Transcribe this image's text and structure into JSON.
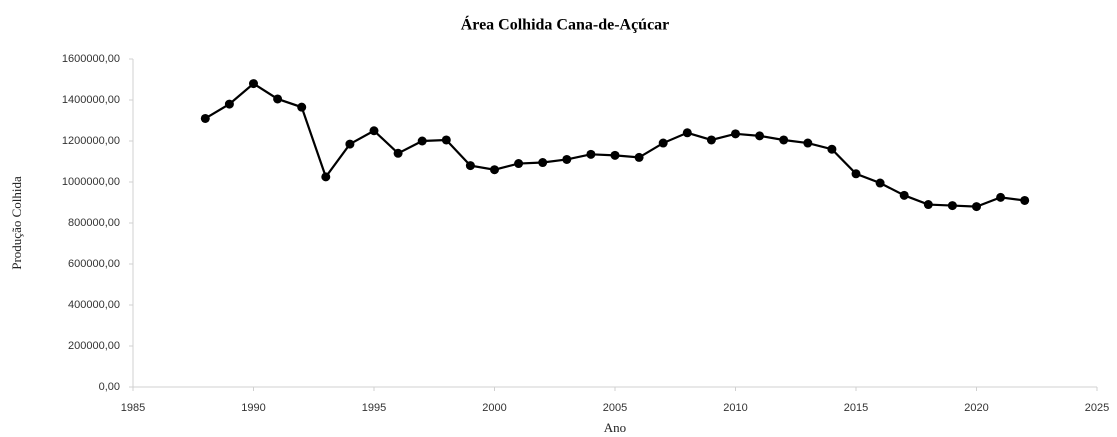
{
  "chart_data": {
    "type": "line",
    "title": "Área Colhida Cana-de-Açúcar",
    "x_label": "Ano",
    "y_label": "Produção Colhida",
    "x": [
      1988,
      1989,
      1990,
      1991,
      1992,
      1993,
      1994,
      1995,
      1996,
      1997,
      1998,
      1999,
      2000,
      2001,
      2002,
      2003,
      2004,
      2005,
      2006,
      2007,
      2008,
      2009,
      2010,
      2011,
      2012,
      2013,
      2014,
      2015,
      2016,
      2017,
      2018,
      2019,
      2020,
      2021,
      2022
    ],
    "series": [
      {
        "name": "Área Colhida",
        "color": "#000000",
        "marker": "circle",
        "values": [
          1310000,
          1380000,
          1480000,
          1405000,
          1365000,
          1025000,
          1185000,
          1250000,
          1140000,
          1200000,
          1205000,
          1080000,
          1060000,
          1090000,
          1095000,
          1110000,
          1135000,
          1130000,
          1120000,
          1190000,
          1240000,
          1205000,
          1235000,
          1225000,
          1205000,
          1190000,
          1160000,
          1040000,
          995000,
          935000,
          890000,
          885000,
          880000,
          925000,
          910000
        ]
      }
    ],
    "xlim": [
      1985,
      2025
    ],
    "xticks": [
      1985,
      1990,
      1995,
      2000,
      2005,
      2010,
      2015,
      2020,
      2025
    ],
    "ylim": [
      0,
      1600000
    ],
    "yticks": [
      {
        "value": 0,
        "label": "0,00"
      },
      {
        "value": 200000,
        "label": "200000,00"
      },
      {
        "value": 400000,
        "label": "400000,00"
      },
      {
        "value": 600000,
        "label": "600000,00"
      },
      {
        "value": 800000,
        "label": "800000,00"
      },
      {
        "value": 1000000,
        "label": "1000000,00"
      },
      {
        "value": 1200000,
        "label": "1200000,00"
      },
      {
        "value": 1400000,
        "label": "1400000,00"
      },
      {
        "value": 1600000,
        "label": "1600000,00"
      }
    ],
    "grid": false
  }
}
